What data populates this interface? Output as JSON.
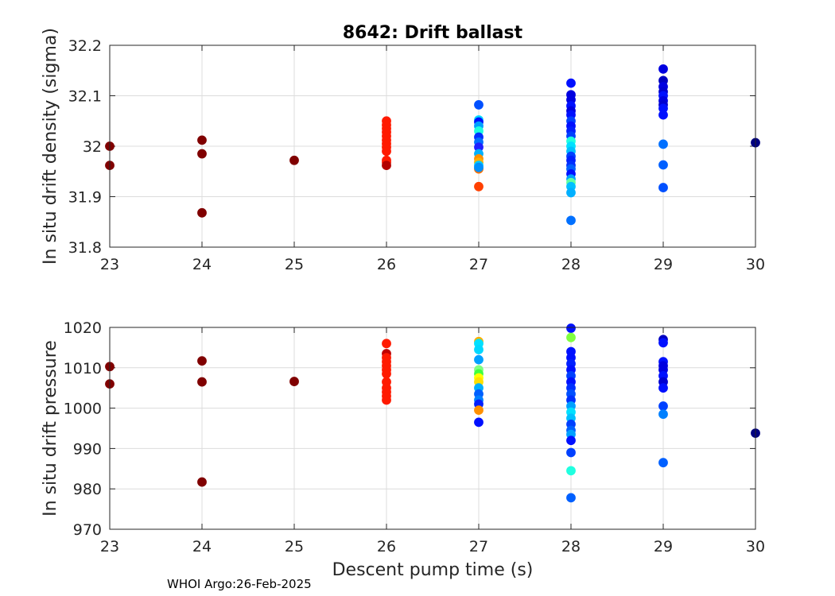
{
  "footer": "WHOI Argo:26-Feb-2025",
  "chart_data": [
    {
      "type": "scatter",
      "title": "8642: Drift ballast",
      "xlabel": "",
      "ylabel": "In situ drift density (sigma)",
      "xlim": [
        23,
        30
      ],
      "ylim": [
        31.8,
        32.2
      ],
      "xticks": [
        "23",
        "24",
        "25",
        "26",
        "27",
        "28",
        "29",
        "30"
      ],
      "yticks": [
        "31.8",
        "31.9",
        "32",
        "32.1",
        "32.2"
      ],
      "grid": true,
      "colormap": "jet",
      "points": [
        {
          "x": 23,
          "y": 32.0,
          "color": "#800000"
        },
        {
          "x": 23,
          "y": 31.962,
          "color": "#800000"
        },
        {
          "x": 24,
          "y": 32.012,
          "color": "#800000"
        },
        {
          "x": 24,
          "y": 31.985,
          "color": "#800000"
        },
        {
          "x": 24,
          "y": 31.868,
          "color": "#800000"
        },
        {
          "x": 25,
          "y": 31.972,
          "color": "#800000"
        },
        {
          "x": 26,
          "y": 32.05,
          "color": "#ff1a00"
        },
        {
          "x": 26,
          "y": 32.042,
          "color": "#ff1a00"
        },
        {
          "x": 26,
          "y": 32.035,
          "color": "#ff1a00"
        },
        {
          "x": 26,
          "y": 32.028,
          "color": "#ff1a00"
        },
        {
          "x": 26,
          "y": 32.02,
          "color": "#ff1a00"
        },
        {
          "x": 26,
          "y": 32.012,
          "color": "#ff1a00"
        },
        {
          "x": 26,
          "y": 32.005,
          "color": "#ff1a00"
        },
        {
          "x": 26,
          "y": 31.998,
          "color": "#ff1a00"
        },
        {
          "x": 26,
          "y": 31.99,
          "color": "#ff1a00"
        },
        {
          "x": 26,
          "y": 31.972,
          "color": "#ff1a00"
        },
        {
          "x": 26,
          "y": 31.968,
          "color": "#ff1a00"
        },
        {
          "x": 26,
          "y": 31.962,
          "color": "#b30000"
        },
        {
          "x": 27,
          "y": 32.082,
          "color": "#0050ff"
        },
        {
          "x": 27,
          "y": 32.052,
          "color": "#00d8ff"
        },
        {
          "x": 27,
          "y": 32.048,
          "color": "#0010ff"
        },
        {
          "x": 27,
          "y": 32.04,
          "color": "#00a0ff"
        },
        {
          "x": 27,
          "y": 32.03,
          "color": "#20ffe0"
        },
        {
          "x": 27,
          "y": 32.018,
          "color": "#0030ff"
        },
        {
          "x": 27,
          "y": 32.008,
          "color": "#0070ff"
        },
        {
          "x": 27,
          "y": 31.998,
          "color": "#2020ff"
        },
        {
          "x": 27,
          "y": 31.985,
          "color": "#00b0ff"
        },
        {
          "x": 27,
          "y": 31.975,
          "color": "#ff9000"
        },
        {
          "x": 27,
          "y": 31.968,
          "color": "#ffb000"
        },
        {
          "x": 27,
          "y": 31.962,
          "color": "#00c8ff"
        },
        {
          "x": 27,
          "y": 31.955,
          "color": "#ff7000"
        },
        {
          "x": 27,
          "y": 31.958,
          "color": "#0090ff"
        },
        {
          "x": 27,
          "y": 31.92,
          "color": "#ff4000"
        },
        {
          "x": 28,
          "y": 32.125,
          "color": "#0010ff"
        },
        {
          "x": 28,
          "y": 32.102,
          "color": "#0000e0"
        },
        {
          "x": 28,
          "y": 32.092,
          "color": "#0000e0"
        },
        {
          "x": 28,
          "y": 32.08,
          "color": "#0010ff"
        },
        {
          "x": 28,
          "y": 32.07,
          "color": "#0000e0"
        },
        {
          "x": 28,
          "y": 32.062,
          "color": "#0010ff"
        },
        {
          "x": 28,
          "y": 32.05,
          "color": "#0040ff"
        },
        {
          "x": 28,
          "y": 32.04,
          "color": "#0010ff"
        },
        {
          "x": 28,
          "y": 32.03,
          "color": "#0020ff"
        },
        {
          "x": 28,
          "y": 32.02,
          "color": "#0040ff"
        },
        {
          "x": 28,
          "y": 32.01,
          "color": "#20ffe0"
        },
        {
          "x": 28,
          "y": 32.0,
          "color": "#00e0ff"
        },
        {
          "x": 28,
          "y": 31.99,
          "color": "#00c0ff"
        },
        {
          "x": 28,
          "y": 31.98,
          "color": "#0040ff"
        },
        {
          "x": 28,
          "y": 31.972,
          "color": "#0020ff"
        },
        {
          "x": 28,
          "y": 31.962,
          "color": "#0030ff"
        },
        {
          "x": 28,
          "y": 31.955,
          "color": "#0060ff"
        },
        {
          "x": 28,
          "y": 31.945,
          "color": "#0010ff"
        },
        {
          "x": 28,
          "y": 31.935,
          "color": "#00a0ff"
        },
        {
          "x": 28,
          "y": 31.928,
          "color": "#60ffa0"
        },
        {
          "x": 28,
          "y": 31.92,
          "color": "#00c0ff"
        },
        {
          "x": 28,
          "y": 31.908,
          "color": "#00b0ff"
        },
        {
          "x": 28,
          "y": 31.853,
          "color": "#0070ff"
        },
        {
          "x": 29,
          "y": 32.153,
          "color": "#0000e0"
        },
        {
          "x": 29,
          "y": 32.13,
          "color": "#0000c0"
        },
        {
          "x": 29,
          "y": 32.118,
          "color": "#0000e0"
        },
        {
          "x": 29,
          "y": 32.108,
          "color": "#0000d0"
        },
        {
          "x": 29,
          "y": 32.1,
          "color": "#0010ff"
        },
        {
          "x": 29,
          "y": 32.09,
          "color": "#0000e0"
        },
        {
          "x": 29,
          "y": 32.082,
          "color": "#0000d0"
        },
        {
          "x": 29,
          "y": 32.075,
          "color": "#0010ff"
        },
        {
          "x": 29,
          "y": 32.062,
          "color": "#0010ff"
        },
        {
          "x": 29,
          "y": 32.004,
          "color": "#0070ff"
        },
        {
          "x": 29,
          "y": 31.963,
          "color": "#0060ff"
        },
        {
          "x": 29,
          "y": 31.918,
          "color": "#0050ff"
        },
        {
          "x": 30,
          "y": 32.007,
          "color": "#000080"
        }
      ]
    },
    {
      "type": "scatter",
      "title": "",
      "xlabel": "Descent pump time (s)",
      "ylabel": "In situ drift pressure",
      "xlim": [
        23,
        30
      ],
      "ylim": [
        970,
        1020
      ],
      "xticks": [
        "23",
        "24",
        "25",
        "26",
        "27",
        "28",
        "29",
        "30"
      ],
      "yticks": [
        "970",
        "980",
        "990",
        "1000",
        "1010",
        "1020"
      ],
      "grid": true,
      "colormap": "jet",
      "points": [
        {
          "x": 23,
          "y": 1010.3,
          "color": "#800000"
        },
        {
          "x": 23,
          "y": 1006.0,
          "color": "#800000"
        },
        {
          "x": 24,
          "y": 1011.7,
          "color": "#800000"
        },
        {
          "x": 24,
          "y": 1006.5,
          "color": "#800000"
        },
        {
          "x": 24,
          "y": 981.7,
          "color": "#800000"
        },
        {
          "x": 25,
          "y": 1006.6,
          "color": "#800000"
        },
        {
          "x": 26,
          "y": 1016.0,
          "color": "#ff1a00"
        },
        {
          "x": 26,
          "y": 1013.5,
          "color": "#c00000"
        },
        {
          "x": 26,
          "y": 1012.5,
          "color": "#ff1a00"
        },
        {
          "x": 26,
          "y": 1011.5,
          "color": "#ff1a00"
        },
        {
          "x": 26,
          "y": 1010.5,
          "color": "#ff1a00"
        },
        {
          "x": 26,
          "y": 1009.5,
          "color": "#ff1a00"
        },
        {
          "x": 26,
          "y": 1008.5,
          "color": "#ff1a00"
        },
        {
          "x": 26,
          "y": 1006.5,
          "color": "#ff1a00"
        },
        {
          "x": 26,
          "y": 1005.0,
          "color": "#ff1a00"
        },
        {
          "x": 26,
          "y": 1004.0,
          "color": "#ff1a00"
        },
        {
          "x": 26,
          "y": 1003.0,
          "color": "#ff1a00"
        },
        {
          "x": 26,
          "y": 1002.0,
          "color": "#ff1a00"
        },
        {
          "x": 27,
          "y": 1016.5,
          "color": "#ffb000"
        },
        {
          "x": 27,
          "y": 1016.0,
          "color": "#00e0ff"
        },
        {
          "x": 27,
          "y": 1014.5,
          "color": "#00d8ff"
        },
        {
          "x": 27,
          "y": 1012.0,
          "color": "#00a0ff"
        },
        {
          "x": 27,
          "y": 1009.5,
          "color": "#80ff80"
        },
        {
          "x": 27,
          "y": 1008.5,
          "color": "#40ff40"
        },
        {
          "x": 27,
          "y": 1007.5,
          "color": "#ffff00"
        },
        {
          "x": 27,
          "y": 1006.5,
          "color": "#ffe000"
        },
        {
          "x": 27,
          "y": 1005.0,
          "color": "#00b0ff"
        },
        {
          "x": 27,
          "y": 1003.5,
          "color": "#0060ff"
        },
        {
          "x": 27,
          "y": 1002.0,
          "color": "#0080ff"
        },
        {
          "x": 27,
          "y": 1001.0,
          "color": "#0020ff"
        },
        {
          "x": 27,
          "y": 999.5,
          "color": "#ff9000"
        },
        {
          "x": 27,
          "y": 996.5,
          "color": "#0010ff"
        },
        {
          "x": 28,
          "y": 1019.8,
          "color": "#0010ff"
        },
        {
          "x": 28,
          "y": 1017.5,
          "color": "#80ff40"
        },
        {
          "x": 28,
          "y": 1014.0,
          "color": "#0010ff"
        },
        {
          "x": 28,
          "y": 1012.5,
          "color": "#0010ff"
        },
        {
          "x": 28,
          "y": 1011.0,
          "color": "#0020ff"
        },
        {
          "x": 28,
          "y": 1009.5,
          "color": "#0010ff"
        },
        {
          "x": 28,
          "y": 1008.0,
          "color": "#0040ff"
        },
        {
          "x": 28,
          "y": 1006.5,
          "color": "#0010ff"
        },
        {
          "x": 28,
          "y": 1005.0,
          "color": "#0030ff"
        },
        {
          "x": 28,
          "y": 1003.5,
          "color": "#0050ff"
        },
        {
          "x": 28,
          "y": 1002.0,
          "color": "#0030ff"
        },
        {
          "x": 28,
          "y": 1000.5,
          "color": "#00a0ff"
        },
        {
          "x": 28,
          "y": 999.0,
          "color": "#00e0ff"
        },
        {
          "x": 28,
          "y": 997.5,
          "color": "#00c0ff"
        },
        {
          "x": 28,
          "y": 996.0,
          "color": "#0040ff"
        },
        {
          "x": 28,
          "y": 994.5,
          "color": "#0060ff"
        },
        {
          "x": 28,
          "y": 993.5,
          "color": "#00a0ff"
        },
        {
          "x": 28,
          "y": 992.0,
          "color": "#0010ff"
        },
        {
          "x": 28,
          "y": 989.0,
          "color": "#0040ff"
        },
        {
          "x": 28,
          "y": 984.5,
          "color": "#20ffe0"
        },
        {
          "x": 28,
          "y": 977.8,
          "color": "#0060ff"
        },
        {
          "x": 29,
          "y": 1017.0,
          "color": "#0000c0"
        },
        {
          "x": 29,
          "y": 1016.2,
          "color": "#0010ff"
        },
        {
          "x": 29,
          "y": 1011.5,
          "color": "#0010ff"
        },
        {
          "x": 29,
          "y": 1010.5,
          "color": "#0000e0"
        },
        {
          "x": 29,
          "y": 1009.5,
          "color": "#0000e0"
        },
        {
          "x": 29,
          "y": 1008.0,
          "color": "#0010ff"
        },
        {
          "x": 29,
          "y": 1006.5,
          "color": "#0000d0"
        },
        {
          "x": 29,
          "y": 1005.0,
          "color": "#0010ff"
        },
        {
          "x": 29,
          "y": 1000.5,
          "color": "#0040ff"
        },
        {
          "x": 29,
          "y": 998.5,
          "color": "#0080ff"
        },
        {
          "x": 29,
          "y": 986.5,
          "color": "#0060ff"
        },
        {
          "x": 30,
          "y": 993.8,
          "color": "#000080"
        }
      ]
    }
  ]
}
